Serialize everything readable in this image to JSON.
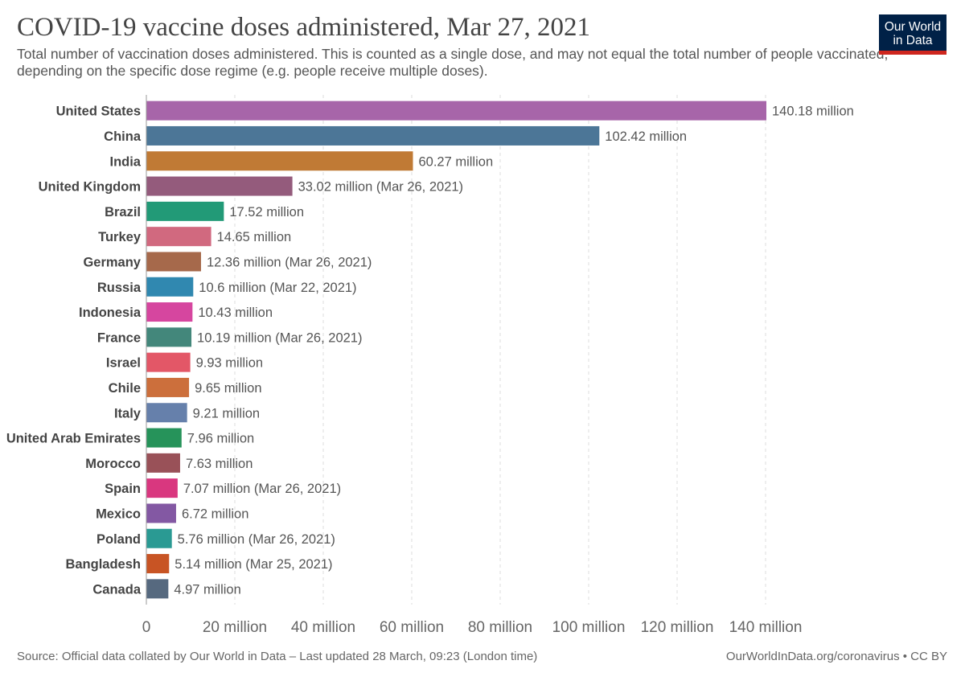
{
  "header": {
    "title": "COVID-19 vaccine doses administered, Mar 27, 2021",
    "subtitle": "Total number of vaccination doses administered. This is counted as a single dose, and may not equal the total number of people vaccinated, depending on the specific dose regime (e.g. people receive multiple doses).",
    "logo_line1": "Our World",
    "logo_line2": "in Data"
  },
  "footer": {
    "source": "Source: Official data collated by Our World in Data – Last updated 28 March, 09:23 (London time)",
    "credit": "OurWorldInData.org/coronavirus • CC BY"
  },
  "chart_data": {
    "type": "bar",
    "orientation": "horizontal",
    "title": "COVID-19 vaccine doses administered, Mar 27, 2021",
    "xlabel": "",
    "ylabel": "",
    "xlim": [
      0,
      140
    ],
    "unit": "million",
    "grid": true,
    "x_ticks": [
      {
        "value": 0,
        "label": "0"
      },
      {
        "value": 20,
        "label": "20 million"
      },
      {
        "value": 40,
        "label": "40 million"
      },
      {
        "value": 60,
        "label": "60 million"
      },
      {
        "value": 80,
        "label": "80 million"
      },
      {
        "value": 100,
        "label": "100 million"
      },
      {
        "value": 120,
        "label": "120 million"
      },
      {
        "value": 140,
        "label": "140 million"
      }
    ],
    "bars": [
      {
        "category": "United States",
        "value": 140.18,
        "label": "140.18 million",
        "color": "#a765a9"
      },
      {
        "category": "China",
        "value": 102.42,
        "label": "102.42 million",
        "color": "#4c7697"
      },
      {
        "category": "India",
        "value": 60.27,
        "label": "60.27 million",
        "color": "#c07a35"
      },
      {
        "category": "United Kingdom",
        "value": 33.02,
        "label": "33.02 million (Mar 26, 2021)",
        "color": "#945b7c"
      },
      {
        "category": "Brazil",
        "value": 17.52,
        "label": "17.52 million",
        "color": "#229a77"
      },
      {
        "category": "Turkey",
        "value": 14.65,
        "label": "14.65 million",
        "color": "#d1697f"
      },
      {
        "category": "Germany",
        "value": 12.36,
        "label": "12.36 million (Mar 26, 2021)",
        "color": "#a6694b"
      },
      {
        "category": "Russia",
        "value": 10.6,
        "label": "10.6 million (Mar 22, 2021)",
        "color": "#3088b0"
      },
      {
        "category": "Indonesia",
        "value": 10.43,
        "label": "10.43 million",
        "color": "#d6469f"
      },
      {
        "category": "France",
        "value": 10.19,
        "label": "10.19 million (Mar 26, 2021)",
        "color": "#43877b"
      },
      {
        "category": "Israel",
        "value": 9.93,
        "label": "9.93 million",
        "color": "#e35767"
      },
      {
        "category": "Chile",
        "value": 9.65,
        "label": "9.65 million",
        "color": "#cc6f3c"
      },
      {
        "category": "Italy",
        "value": 9.21,
        "label": "9.21 million",
        "color": "#6680ab"
      },
      {
        "category": "United Arab Emirates",
        "value": 7.96,
        "label": "7.96 million",
        "color": "#26935a"
      },
      {
        "category": "Morocco",
        "value": 7.63,
        "label": "7.63 million",
        "color": "#995158"
      },
      {
        "category": "Spain",
        "value": 7.07,
        "label": "7.07 million (Mar 26, 2021)",
        "color": "#d9377f"
      },
      {
        "category": "Mexico",
        "value": 6.72,
        "label": "6.72 million",
        "color": "#8358a3"
      },
      {
        "category": "Poland",
        "value": 5.76,
        "label": "5.76 million (Mar 26, 2021)",
        "color": "#2a9a93"
      },
      {
        "category": "Bangladesh",
        "value": 5.14,
        "label": "5.14 million (Mar 25, 2021)",
        "color": "#c85424"
      },
      {
        "category": "Canada",
        "value": 4.97,
        "label": "4.97 million",
        "color": "#56697f"
      }
    ]
  }
}
